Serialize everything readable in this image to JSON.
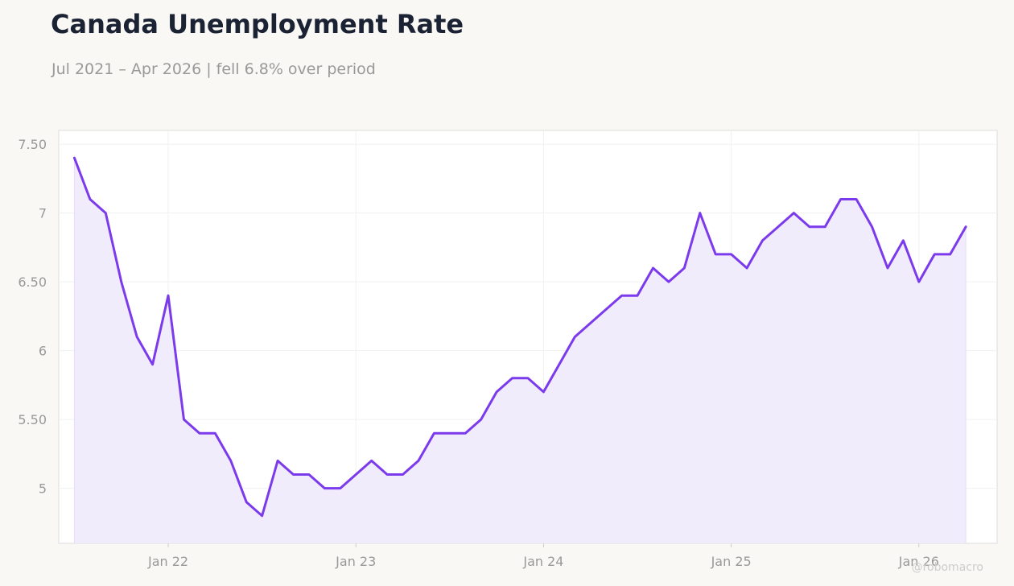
{
  "title": "Canada Unemployment Rate",
  "subtitle": "Jul 2021 – Apr 2026 | fell 6.8% over period",
  "watermark": "@robomacro",
  "colors": {
    "line": "#7c3aed",
    "area": "#f1ecfc",
    "grid": "#f0f0f0",
    "axis_text": "#999999",
    "title": "#1a2233"
  },
  "chart_data": {
    "type": "area",
    "title": "Canada Unemployment Rate",
    "subtitle": "Jul 2021 – Apr 2026 | fell 6.8% over period",
    "xlabel": "",
    "ylabel": "",
    "grid": true,
    "legend": "none",
    "ylim": [
      4.6,
      7.6
    ],
    "y_ticks": [
      5,
      5.5,
      6,
      6.5,
      7,
      7.5
    ],
    "y_tick_labels": [
      "5",
      "5.50",
      "6",
      "6.50",
      "7",
      "7.50"
    ],
    "x_ticks": [
      "2022-01",
      "2023-01",
      "2024-01",
      "2025-01",
      "2026-01"
    ],
    "x_tick_labels": [
      "Jan 22",
      "Jan 23",
      "Jan 24",
      "Jan 25",
      "Jan 26"
    ],
    "xlim": [
      "2021-06",
      "2026-06"
    ],
    "x": [
      "2021-07",
      "2021-08",
      "2021-09",
      "2021-10",
      "2021-11",
      "2021-12",
      "2022-01",
      "2022-02",
      "2022-03",
      "2022-04",
      "2022-05",
      "2022-06",
      "2022-07",
      "2022-08",
      "2022-09",
      "2022-10",
      "2022-11",
      "2022-12",
      "2023-01",
      "2023-02",
      "2023-03",
      "2023-04",
      "2023-05",
      "2023-06",
      "2023-07",
      "2023-08",
      "2023-09",
      "2023-10",
      "2023-11",
      "2023-12",
      "2024-01",
      "2024-02",
      "2024-03",
      "2024-04",
      "2024-05",
      "2024-06",
      "2024-07",
      "2024-08",
      "2024-09",
      "2024-10",
      "2024-11",
      "2024-12",
      "2025-01",
      "2025-02",
      "2025-03",
      "2025-04",
      "2025-05",
      "2025-06",
      "2025-07",
      "2025-08",
      "2025-09",
      "2025-10",
      "2025-11",
      "2025-12",
      "2026-01",
      "2026-02",
      "2026-03",
      "2026-04"
    ],
    "series": [
      {
        "values": [
          7.4,
          7.1,
          7.0,
          6.5,
          6.1,
          5.9,
          6.4,
          5.5,
          5.4,
          5.4,
          5.2,
          4.9,
          4.8,
          5.2,
          5.1,
          5.1,
          5.0,
          5.0,
          5.1,
          5.2,
          5.1,
          5.1,
          5.2,
          5.4,
          5.4,
          5.4,
          5.5,
          5.7,
          5.8,
          5.8,
          5.7,
          5.9,
          6.1,
          6.2,
          6.3,
          6.4,
          6.4,
          6.6,
          6.5,
          6.6,
          7.0,
          6.7,
          6.7,
          6.6,
          6.8,
          6.9,
          7.0,
          6.9,
          6.9,
          7.1,
          7.1,
          6.9,
          6.6,
          6.8,
          6.5,
          6.7,
          6.7,
          6.9
        ]
      }
    ]
  }
}
